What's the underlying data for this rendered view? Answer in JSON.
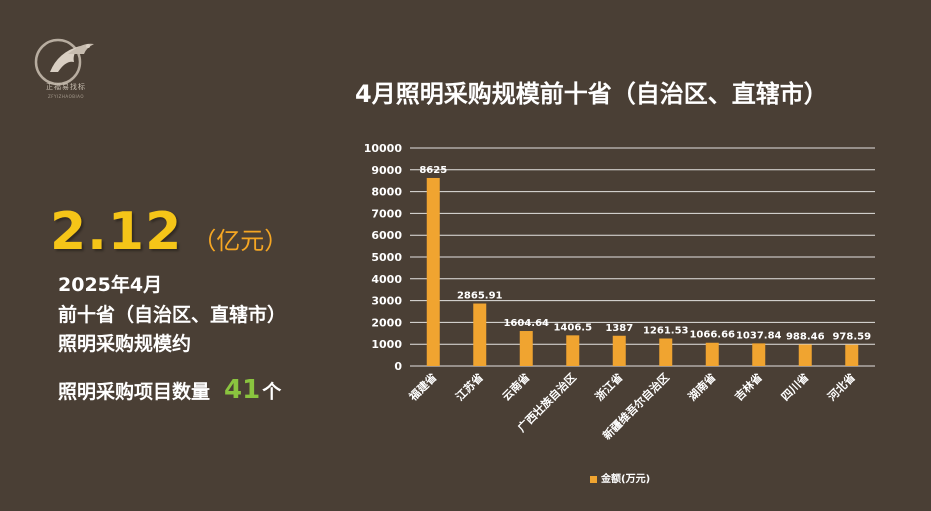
{
  "logo": {
    "name": "正福易找标",
    "sub": "ZFYIZHAOBIAO"
  },
  "headline": {
    "value": "2.12",
    "unit": "（亿元）",
    "line1": "2025年4月",
    "line2": "前十省（自治区、直辖市）",
    "line3": "照明采购规模约",
    "count_label": "照明采购项目数量",
    "count_value": "41",
    "count_unit": "个"
  },
  "colors": {
    "background": "#4a3f35",
    "bar": "#f0a430",
    "headline": "#f5c518",
    "count": "#8ac43f"
  },
  "chart_data": {
    "type": "bar",
    "title": "4月照明采购规模前十省（自治区、直辖市）",
    "categories": [
      "福建省",
      "江苏省",
      "云南省",
      "广西壮族自治区",
      "浙江省",
      "新疆维吾尔自治区",
      "湖南省",
      "吉林省",
      "四川省",
      "河北省"
    ],
    "series": [
      {
        "name": "金额(万元)",
        "values": [
          8625,
          2865.91,
          1604.64,
          1406.5,
          1387,
          1261.53,
          1066.66,
          1037.84,
          988.46,
          978.59
        ]
      }
    ],
    "data_labels": [
      "8625",
      "2865.91",
      "1604.64",
      "1406.5",
      "1387",
      "1261.53",
      "1066.66",
      "1037.84",
      "988.46",
      "978.59"
    ],
    "yticks": [
      "0",
      "1000",
      "2000",
      "3000",
      "4000",
      "5000",
      "6000",
      "7000",
      "8000",
      "9000",
      "10000"
    ],
    "ylim": [
      0,
      10000
    ],
    "grid": true,
    "legend": "bottom"
  }
}
